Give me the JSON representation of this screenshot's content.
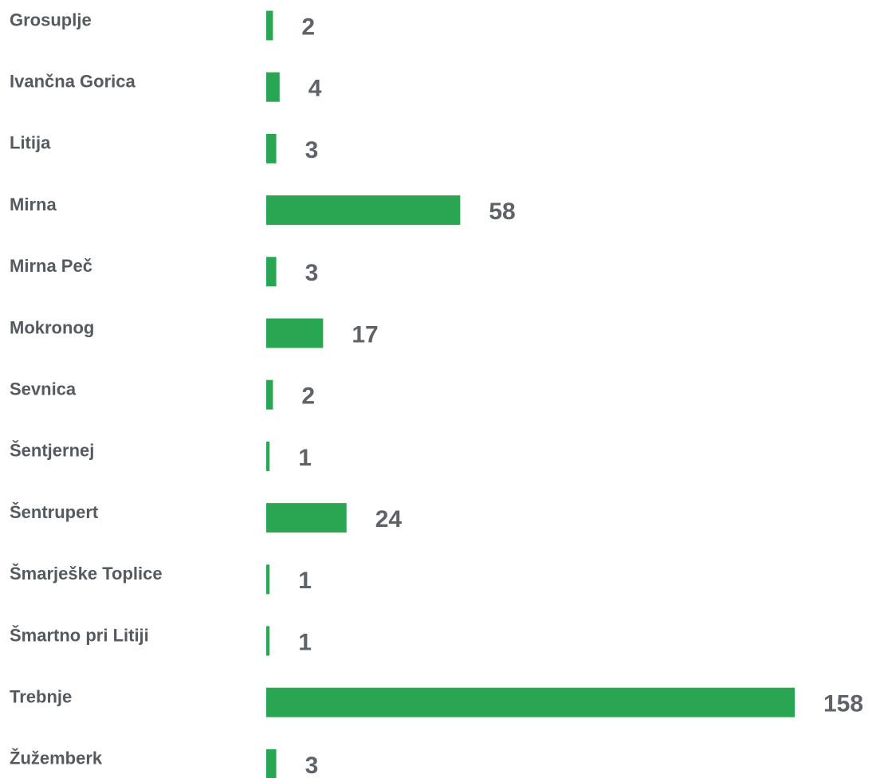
{
  "chart_data": {
    "type": "bar",
    "orientation": "horizontal",
    "color": "#2aa552",
    "categories": [
      "Grosuplje",
      "Ivančna Gorica",
      "Litija",
      "Mirna",
      "Mirna Peč",
      "Mokronog",
      "Sevnica",
      "Šentjernej",
      "Šentrupert",
      "Šmarješke Toplice",
      "Šmartno pri Litiji",
      "Trebnje",
      "Žužemberk"
    ],
    "values": [
      2,
      4,
      3,
      58,
      3,
      17,
      2,
      1,
      24,
      1,
      1,
      158,
      3
    ]
  }
}
